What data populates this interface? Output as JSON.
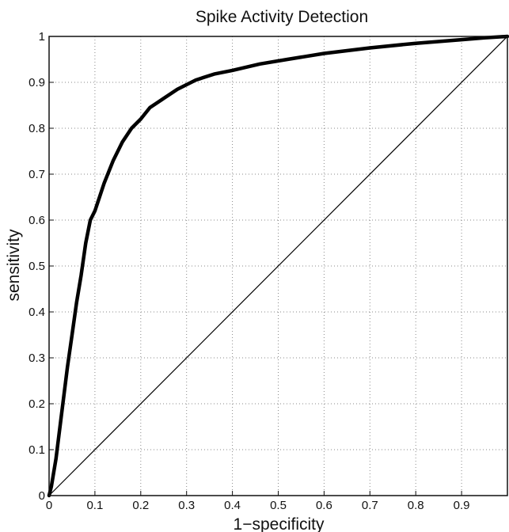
{
  "chart_data": {
    "type": "line",
    "title": "Spike Activity Detection",
    "xlabel": "1−specificity",
    "ylabel": "sensitivity",
    "xlim": [
      0,
      1
    ],
    "ylim": [
      0,
      1
    ],
    "grid": true,
    "x_ticks": [
      "0",
      "0.1",
      "0.2",
      "0.3",
      "0.4",
      "0.5",
      "0.6",
      "0.7",
      "0.8",
      "0.9"
    ],
    "y_ticks": [
      "0",
      "0.1",
      "0.2",
      "0.3",
      "0.4",
      "0.5",
      "0.6",
      "0.7",
      "0.8",
      "0.9",
      "1"
    ],
    "series": [
      {
        "style": "thick",
        "x": [
          0,
          0.005,
          0.01,
          0.015,
          0.02,
          0.025,
          0.03,
          0.04,
          0.05,
          0.06,
          0.07,
          0.08,
          0.09,
          0.1,
          0.12,
          0.14,
          0.16,
          0.18,
          0.2,
          0.22,
          0.25,
          0.28,
          0.32,
          0.36,
          0.4,
          0.46,
          0.52,
          0.6,
          0.7,
          0.8,
          0.9,
          0.95,
          1.0
        ],
        "y": [
          0,
          0.02,
          0.05,
          0.08,
          0.12,
          0.16,
          0.2,
          0.28,
          0.35,
          0.42,
          0.48,
          0.55,
          0.6,
          0.62,
          0.68,
          0.73,
          0.77,
          0.8,
          0.82,
          0.845,
          0.865,
          0.885,
          0.905,
          0.918,
          0.926,
          0.94,
          0.95,
          0.963,
          0.975,
          0.985,
          0.993,
          0.997,
          1.0
        ]
      },
      {
        "style": "thin",
        "x": [
          0,
          1
        ],
        "y": [
          0,
          1
        ]
      }
    ]
  }
}
